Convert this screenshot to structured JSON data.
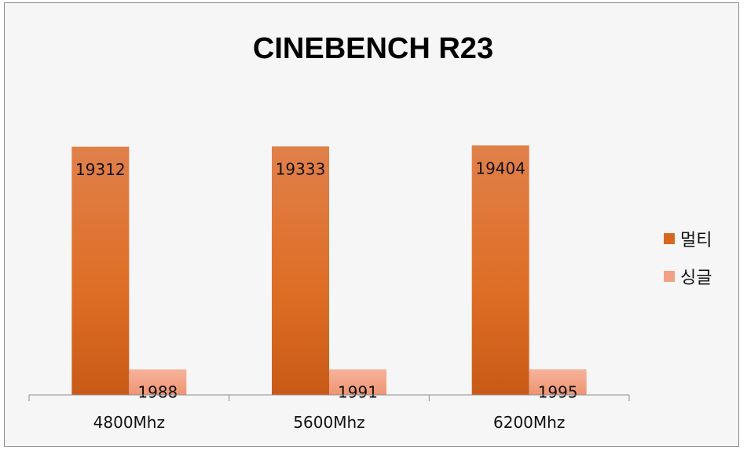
{
  "chart_data": {
    "type": "bar",
    "title": "CINEBENCH R23",
    "categories": [
      "4800Mhz",
      "5600Mhz",
      "6200Mhz"
    ],
    "series": [
      {
        "name": "멀티",
        "values": [
          19312,
          19333,
          19404
        ],
        "color": "#d9661f"
      },
      {
        "name": "싱글",
        "values": [
          1988,
          1991,
          1995
        ],
        "color": "#f2a083"
      }
    ],
    "ylim": [
      0,
      24000
    ],
    "grid": false,
    "legend_position": "right",
    "data_labels": true
  }
}
